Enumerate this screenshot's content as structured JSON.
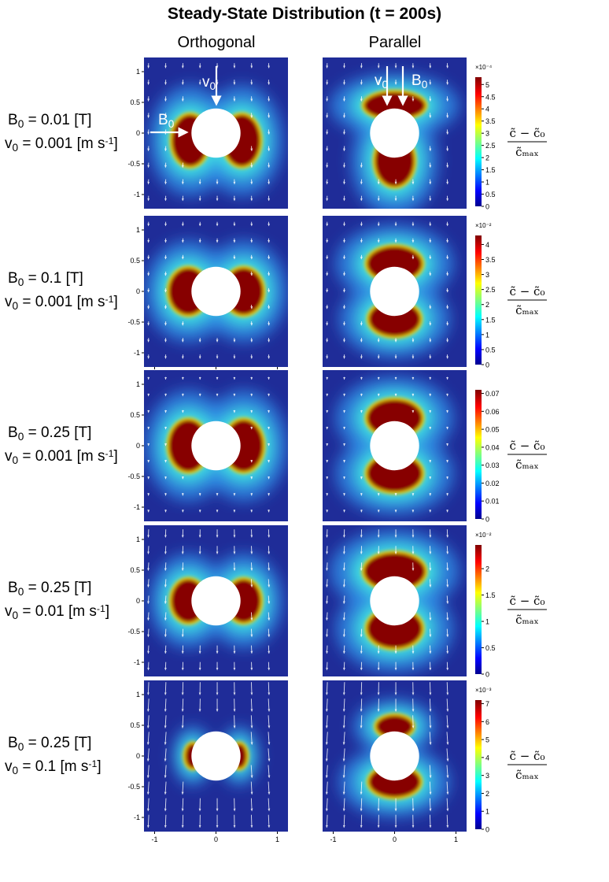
{
  "title": "Steady-State Distribution (t = 200s)",
  "columns": [
    "Orthogonal",
    "Parallel"
  ],
  "axis": {
    "lim": [
      -1.2,
      1.2
    ],
    "yticks": [
      -1,
      -0.5,
      0,
      0.5,
      1
    ],
    "xticks": [
      -1,
      0,
      1
    ]
  },
  "colorbar_label": {
    "numerator": "c̃ − c̃₀",
    "denominator": "c̃ₘₐₓ"
  },
  "rows": [
    {
      "label": [
        [
          {
            "t": "B"
          },
          {
            "sub": "0"
          },
          {
            "t": " = 0.01 [T]"
          }
        ],
        [
          {
            "t": "v"
          },
          {
            "sub": "0"
          },
          {
            "t": " = 0.001 [m s"
          },
          {
            "sup": "-1"
          },
          {
            "t": "]"
          }
        ]
      ],
      "x_axis": [
        false,
        false
      ],
      "annotations": [
        [
          {
            "t": "v"
          },
          {
            "sub": "0"
          }
        ],
        [
          {
            "t": "B"
          },
          {
            "sub": "0"
          }
        ],
        [
          {
            "t": "v"
          },
          {
            "sub": "0"
          }
        ],
        [
          {
            "t": "B"
          },
          {
            "sub": "0"
          }
        ]
      ],
      "colorbar": {
        "exponent": "×10⁻⁴",
        "lim": [
          0,
          5.3
        ],
        "ticks": [
          0,
          0.5,
          1,
          1.5,
          2,
          2.5,
          3,
          3.5,
          4,
          4.5,
          5
        ]
      }
    },
    {
      "label": [
        [
          {
            "t": "B"
          },
          {
            "sub": "0"
          },
          {
            "t": " = 0.1 [T]"
          }
        ],
        [
          {
            "t": "v"
          },
          {
            "sub": "0"
          },
          {
            "t": " = 0.001 [m s"
          },
          {
            "sup": "-1"
          },
          {
            "t": "]"
          }
        ]
      ],
      "x_axis": [
        true,
        false
      ],
      "colorbar": {
        "exponent": "×10⁻²",
        "lim": [
          0,
          4.3
        ],
        "ticks": [
          0,
          0.5,
          1,
          1.5,
          2,
          2.5,
          3,
          3.5,
          4
        ]
      }
    },
    {
      "label": [
        [
          {
            "t": "B"
          },
          {
            "sub": "0"
          },
          {
            "t": " = 0.25 [T]"
          }
        ],
        [
          {
            "t": "v"
          },
          {
            "sub": "0"
          },
          {
            "t": " = 0.001 [m s"
          },
          {
            "sup": "-1"
          },
          {
            "t": "]"
          }
        ]
      ],
      "x_axis": [
        false,
        false
      ],
      "colorbar": {
        "lim": [
          0,
          0.072
        ],
        "ticks": [
          0,
          0.01,
          0.02,
          0.03,
          0.04,
          0.05,
          0.06,
          0.07
        ]
      }
    },
    {
      "label": [
        [
          {
            "t": "B"
          },
          {
            "sub": "0"
          },
          {
            "t": " = 0.25 [T]"
          }
        ],
        [
          {
            "t": "v"
          },
          {
            "sub": "0"
          },
          {
            "t": " = 0.01 [m s"
          },
          {
            "sup": "-1"
          },
          {
            "t": "]"
          }
        ]
      ],
      "x_axis": [
        false,
        false
      ],
      "colorbar": {
        "exponent": "×10⁻²",
        "lim": [
          0,
          2.45
        ],
        "ticks": [
          0,
          0.5,
          1,
          1.5,
          2
        ]
      }
    },
    {
      "label": [
        [
          {
            "t": "B"
          },
          {
            "sub": "0"
          },
          {
            "t": " = 0.25 [T]"
          }
        ],
        [
          {
            "t": "v"
          },
          {
            "sub": "0"
          },
          {
            "t": " = 0.1 [m s"
          },
          {
            "sup": "-1"
          },
          {
            "t": "]"
          }
        ]
      ],
      "x_axis": [
        true,
        true
      ],
      "colorbar": {
        "exponent": "×10⁻³",
        "lim": [
          0,
          7.2
        ],
        "ticks": [
          0,
          1,
          2,
          3,
          4,
          5,
          6,
          7
        ]
      }
    }
  ]
}
